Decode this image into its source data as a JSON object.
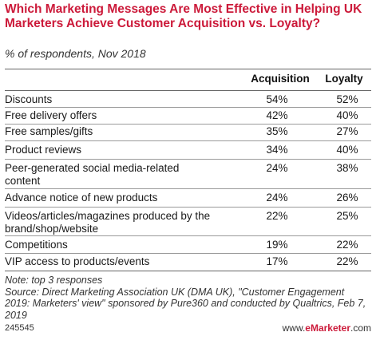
{
  "title": "Which Marketing Messages Are Most Effective in Helping UK Marketers Achieve Customer Acquisition vs. Loyalty?",
  "subtitle": "% of respondents, Nov 2018",
  "chart_data": {
    "type": "table",
    "columns": [
      "Acquisition",
      "Loyalty"
    ],
    "rows": [
      {
        "label": "Discounts",
        "acquisition": "54%",
        "loyalty": "52%"
      },
      {
        "label": "Free delivery offers",
        "acquisition": "42%",
        "loyalty": "40%"
      },
      {
        "label": "Free samples/gifts",
        "acquisition": "35%",
        "loyalty": "27%"
      },
      {
        "label": "Product reviews",
        "acquisition": "34%",
        "loyalty": "40%"
      },
      {
        "label": "Peer-generated social media-related content",
        "acquisition": "24%",
        "loyalty": "38%"
      },
      {
        "label": "Advance notice of new products",
        "acquisition": "24%",
        "loyalty": "26%"
      },
      {
        "label": "Videos/articles/magazines produced by the brand/shop/website",
        "acquisition": "22%",
        "loyalty": "25%"
      },
      {
        "label": "Competitions",
        "acquisition": "19%",
        "loyalty": "22%"
      },
      {
        "label": "VIP access to products/events",
        "acquisition": "17%",
        "loyalty": "22%"
      }
    ]
  },
  "note": "Note: top 3 responses",
  "source": "Source: Direct Marketing Association UK (DMA UK), \"Customer Engagement 2019: Marketers' view\" sponsored by Pure360 and conducted by Qualtrics, Feb 7, 2019",
  "chart_id": "245545",
  "brand_prefix": "www.",
  "brand_name": "eMarketer",
  "brand_suffix": ".com",
  "accent_color": "#cc1a3a"
}
